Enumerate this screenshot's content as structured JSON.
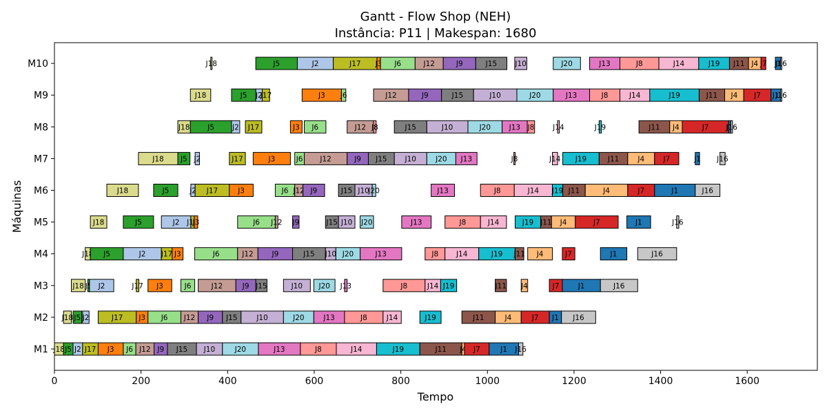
{
  "chart_data": {
    "type": "gantt",
    "title_line1": "Gantt - Flow Shop (NEH)",
    "title_line2": "Instância: P11 | Makespan: 1680",
    "xlabel": "Tempo",
    "ylabel": "Máquinas",
    "xlim": [
      0,
      1762
    ],
    "x_ticks": [
      0,
      200,
      400,
      600,
      800,
      1000,
      1200,
      1400,
      1600
    ],
    "machines": [
      "M1",
      "M2",
      "M3",
      "M4",
      "M5",
      "M6",
      "M7",
      "M8",
      "M9",
      "M10"
    ],
    "job_colors": {
      "J1": "#1f77b4",
      "J2": "#aec7e8",
      "J3": "#ff7f0e",
      "J4": "#ffbb78",
      "J5": "#2ca02c",
      "J6": "#98df8a",
      "J7": "#d62728",
      "J8": "#ff9896",
      "J9": "#9467bd",
      "J10": "#c5b0d5",
      "J11": "#8c564b",
      "J12": "#c49c94",
      "J13": "#e377c2",
      "J14": "#f7b6d2",
      "J15": "#7f7f7f",
      "J16": "#c7c7c7",
      "J17": "#bcbd22",
      "J18": "#dbdb8d",
      "J19": "#17becf",
      "J20": "#9edae5"
    },
    "tasks": {
      "M1": [
        [
          "J18",
          0,
          21
        ],
        [
          "J5",
          21,
          43
        ],
        [
          "J2",
          43,
          65
        ],
        [
          "J17",
          65,
          101
        ],
        [
          "J3",
          101,
          159
        ],
        [
          "J6",
          159,
          188
        ],
        [
          "J12",
          188,
          230
        ],
        [
          "J9",
          230,
          261
        ],
        [
          "J15",
          261,
          328
        ],
        [
          "J10",
          328,
          388
        ],
        [
          "J20",
          388,
          471
        ],
        [
          "J13",
          471,
          568
        ],
        [
          "J8",
          568,
          651
        ],
        [
          "J14",
          651,
          744
        ],
        [
          "J19",
          744,
          844
        ],
        [
          "J11",
          844,
          941
        ],
        [
          "J4",
          941,
          947
        ],
        [
          "J7",
          947,
          1004
        ],
        [
          "J1",
          1004,
          1072
        ],
        [
          "J16",
          1072,
          1082
        ]
      ],
      "M2": [
        [
          "J18",
          21,
          39
        ],
        [
          "J5",
          43,
          63
        ],
        [
          "J2",
          65,
          80
        ],
        [
          "J17",
          101,
          189
        ],
        [
          "J3",
          189,
          216
        ],
        [
          "J6",
          216,
          292
        ],
        [
          "J12",
          292,
          332
        ],
        [
          "J9",
          332,
          388
        ],
        [
          "J15",
          388,
          431
        ],
        [
          "J10",
          431,
          529
        ],
        [
          "J20",
          529,
          599
        ],
        [
          "J13",
          599,
          670
        ],
        [
          "J8",
          670,
          759
        ],
        [
          "J14",
          759,
          801
        ],
        [
          "J19",
          844,
          893
        ],
        [
          "J11",
          941,
          1018
        ],
        [
          "J4",
          1018,
          1078
        ],
        [
          "J7",
          1078,
          1143
        ],
        [
          "J1",
          1143,
          1171
        ],
        [
          "J16",
          1171,
          1250
        ]
      ],
      "M3": [
        [
          "J18",
          39,
          71
        ],
        [
          "J5",
          77,
          81
        ],
        [
          "J2",
          81,
          137
        ],
        [
          "J17",
          189,
          195
        ],
        [
          "J3",
          216,
          271
        ],
        [
          "J6",
          292,
          324
        ],
        [
          "J12",
          332,
          419
        ],
        [
          "J9",
          419,
          465
        ],
        [
          "J15",
          465,
          491
        ],
        [
          "J10",
          529,
          591
        ],
        [
          "J20",
          599,
          648
        ],
        [
          "J13",
          670,
          676
        ],
        [
          "J8",
          759,
          856
        ],
        [
          "J14",
          856,
          892
        ],
        [
          "J19",
          892,
          929
        ],
        [
          "J11",
          1018,
          1044
        ],
        [
          "J4",
          1078,
          1093
        ],
        [
          "J7",
          1143,
          1173
        ],
        [
          "J1",
          1173,
          1261
        ],
        [
          "J16",
          1261,
          1347
        ]
      ],
      "M4": [
        [
          "J18",
          71,
          83
        ],
        [
          "J5",
          83,
          159
        ],
        [
          "J2",
          159,
          247
        ],
        [
          "J17",
          247,
          272
        ],
        [
          "J3",
          272,
          297
        ],
        [
          "J6",
          324,
          423
        ],
        [
          "J12",
          423,
          470
        ],
        [
          "J9",
          470,
          550
        ],
        [
          "J15",
          550,
          626
        ],
        [
          "J10",
          626,
          650
        ],
        [
          "J20",
          650,
          706
        ],
        [
          "J13",
          706,
          802
        ],
        [
          "J8",
          856,
          902
        ],
        [
          "J14",
          902,
          980
        ],
        [
          "J19",
          980,
          1064
        ],
        [
          "J11",
          1064,
          1084
        ],
        [
          "J4",
          1093,
          1150
        ],
        [
          "J7",
          1173,
          1202
        ],
        [
          "J1",
          1261,
          1322
        ],
        [
          "J16",
          1347,
          1437
        ]
      ],
      "M5": [
        [
          "J18",
          83,
          121
        ],
        [
          "J5",
          159,
          229
        ],
        [
          "J2",
          247,
          315
        ],
        [
          "J17",
          315,
          323
        ],
        [
          "J3",
          323,
          331
        ],
        [
          "J6",
          423,
          510
        ],
        [
          "J12",
          510,
          516
        ],
        [
          "J9",
          550,
          565
        ],
        [
          "J15",
          626,
          656
        ],
        [
          "J10",
          656,
          694
        ],
        [
          "J20",
          706,
          737
        ],
        [
          "J13",
          802,
          870
        ],
        [
          "J8",
          902,
          984
        ],
        [
          "J14",
          984,
          1044
        ],
        [
          "J19",
          1064,
          1123
        ],
        [
          "J11",
          1123,
          1148
        ],
        [
          "J4",
          1148,
          1203
        ],
        [
          "J7",
          1203,
          1302
        ],
        [
          "J1",
          1322,
          1377
        ],
        [
          "J16",
          1437,
          1442
        ]
      ],
      "M6": [
        [
          "J18",
          121,
          194
        ],
        [
          "J5",
          229,
          285
        ],
        [
          "J2",
          315,
          325
        ],
        [
          "J17",
          325,
          404
        ],
        [
          "J3",
          404,
          459
        ],
        [
          "J6",
          510,
          555
        ],
        [
          "J12",
          555,
          574
        ],
        [
          "J9",
          574,
          624
        ],
        [
          "J15",
          656,
          694
        ],
        [
          "J10",
          694,
          734
        ],
        [
          "J20",
          734,
          742
        ],
        [
          "J13",
          870,
          924
        ],
        [
          "J8",
          984,
          1062
        ],
        [
          "J14",
          1062,
          1150
        ],
        [
          "J19",
          1150,
          1174
        ],
        [
          "J11",
          1174,
          1226
        ],
        [
          "J4",
          1226,
          1324
        ],
        [
          "J7",
          1324,
          1386
        ],
        [
          "J1",
          1386,
          1480
        ],
        [
          "J16",
          1480,
          1537
        ]
      ],
      "M7": [
        [
          "J18",
          194,
          285
        ],
        [
          "J5",
          285,
          313
        ],
        [
          "J2",
          325,
          335
        ],
        [
          "J17",
          404,
          441
        ],
        [
          "J3",
          459,
          545
        ],
        [
          "J6",
          555,
          577
        ],
        [
          "J12",
          577,
          676
        ],
        [
          "J9",
          676,
          725
        ],
        [
          "J15",
          725,
          785
        ],
        [
          "J10",
          785,
          860
        ],
        [
          "J20",
          860,
          927
        ],
        [
          "J13",
          927,
          976
        ],
        [
          "J8",
          1061,
          1064
        ],
        [
          "J14",
          1150,
          1162
        ],
        [
          "J19",
          1174,
          1258
        ],
        [
          "J11",
          1258,
          1324
        ],
        [
          "J4",
          1324,
          1386
        ],
        [
          "J7",
          1386,
          1442
        ],
        [
          "J1",
          1480,
          1490
        ],
        [
          "J16",
          1537,
          1549
        ]
      ],
      "M8": [
        [
          "J18",
          285,
          314
        ],
        [
          "J5",
          314,
          409
        ],
        [
          "J2",
          409,
          428
        ],
        [
          "J17",
          441,
          479
        ],
        [
          "J3",
          545,
          572
        ],
        [
          "J6",
          577,
          627
        ],
        [
          "J12",
          676,
          737
        ],
        [
          "J8",
          737,
          743
        ],
        [
          "J15",
          785,
          860
        ],
        [
          "J10",
          860,
          955
        ],
        [
          "J20",
          955,
          1034
        ],
        [
          "J13",
          1034,
          1092
        ],
        [
          "J8",
          1092,
          1109
        ],
        [
          "J14",
          1162,
          1166
        ],
        [
          "J19",
          1258,
          1263
        ],
        [
          "J11",
          1350,
          1421
        ],
        [
          "J4",
          1421,
          1450
        ],
        [
          "J7",
          1450,
          1557
        ],
        [
          "J1",
          1557,
          1562
        ],
        [
          "J16",
          1562,
          1566
        ]
      ],
      "M9": [
        [
          "J18",
          314,
          361
        ],
        [
          "J5",
          409,
          465
        ],
        [
          "J2",
          465,
          480
        ],
        [
          "J17",
          480,
          497
        ],
        [
          "J3",
          572,
          663
        ],
        [
          "J6",
          663,
          673
        ],
        [
          "J12",
          737,
          818
        ],
        [
          "J9",
          818,
          894
        ],
        [
          "J15",
          894,
          968
        ],
        [
          "J10",
          968,
          1068
        ],
        [
          "J20",
          1068,
          1152
        ],
        [
          "J13",
          1152,
          1236
        ],
        [
          "J8",
          1236,
          1306
        ],
        [
          "J14",
          1306,
          1375
        ],
        [
          "J19",
          1375,
          1489
        ],
        [
          "J11",
          1489,
          1548
        ],
        [
          "J4",
          1548,
          1592
        ],
        [
          "J7",
          1592,
          1655
        ],
        [
          "J1",
          1655,
          1677
        ],
        [
          "J16",
          1677,
          1680
        ]
      ],
      "M10": [
        [
          "J18",
          361,
          364
        ],
        [
          "J5",
          465,
          561
        ],
        [
          "J2",
          561,
          644
        ],
        [
          "J17",
          644,
          745
        ],
        [
          "J3",
          745,
          753
        ],
        [
          "J6",
          753,
          833
        ],
        [
          "J12",
          833,
          898
        ],
        [
          "J9",
          898,
          973
        ],
        [
          "J15",
          973,
          1045
        ],
        [
          "J10",
          1063,
          1091
        ],
        [
          "J20",
          1152,
          1215
        ],
        [
          "J13",
          1236,
          1306
        ],
        [
          "J8",
          1306,
          1396
        ],
        [
          "J14",
          1396,
          1488
        ],
        [
          "J19",
          1488,
          1559
        ],
        [
          "J11",
          1559,
          1603
        ],
        [
          "J4",
          1603,
          1632
        ],
        [
          "J7",
          1632,
          1643
        ],
        [
          "J1",
          1665,
          1677
        ],
        [
          "J16",
          1677,
          1680
        ]
      ]
    }
  }
}
